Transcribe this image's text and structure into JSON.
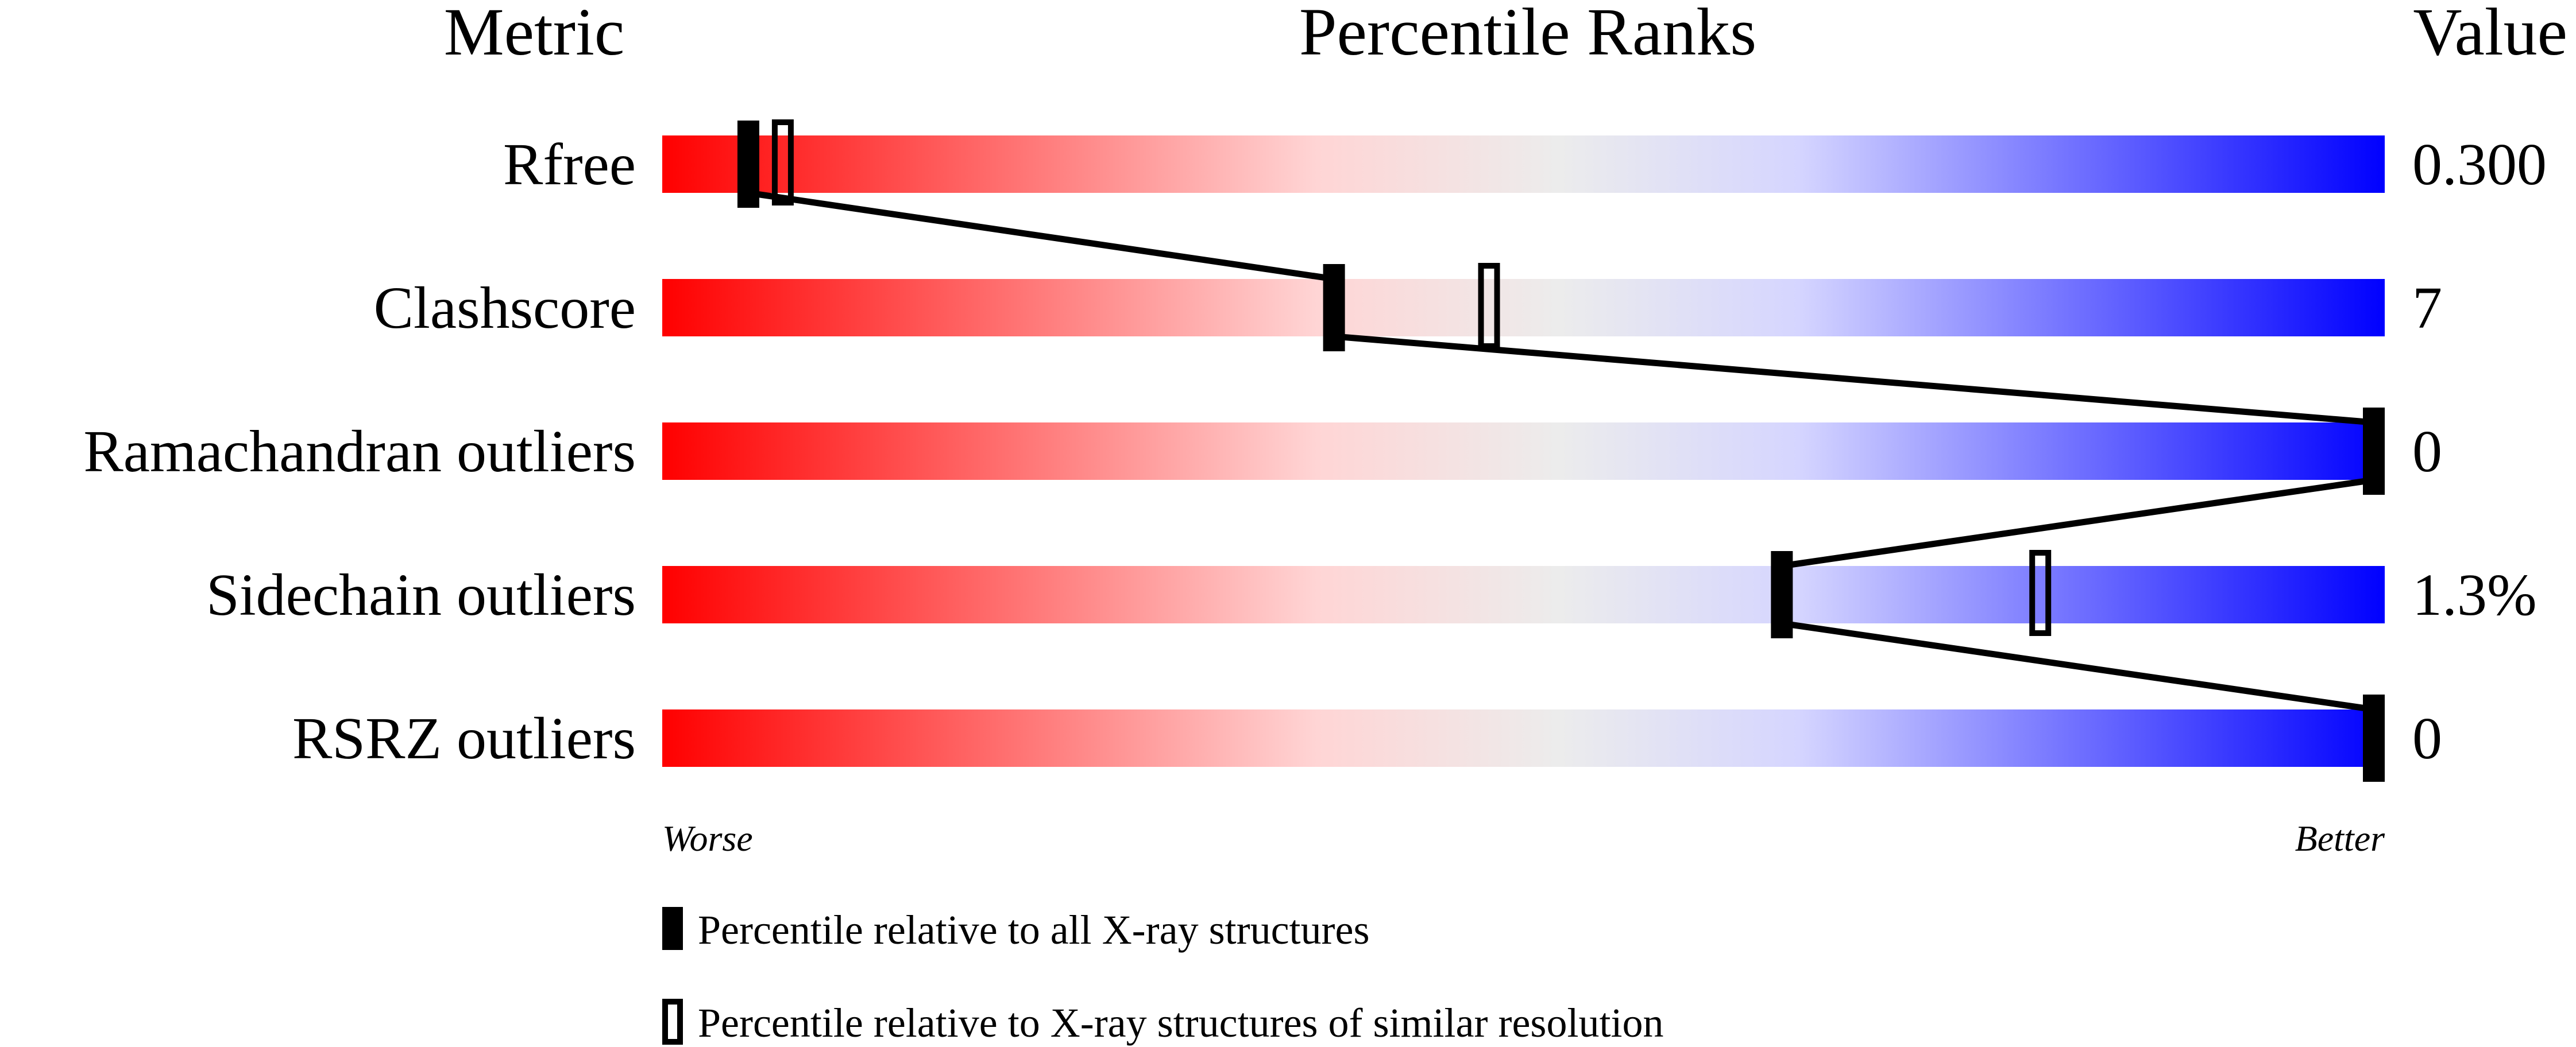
{
  "chart_data": {
    "type": "percentile-slider",
    "headers": {
      "metric": "Metric",
      "ranks": "Percentile Ranks",
      "value": "Value"
    },
    "axis": {
      "left_label": "Worse",
      "right_label": "Better",
      "range": [
        0,
        100
      ]
    },
    "gradient_colors": [
      "#ff0000",
      "#ffd5d5",
      "#ececec",
      "#d5d5ff",
      "#0000ff"
    ],
    "metrics": [
      {
        "name": "Rfree",
        "value": "0.300",
        "percentile_all": 5,
        "percentile_similar": 7
      },
      {
        "name": "Clashscore",
        "value": "7",
        "percentile_all": 39,
        "percentile_similar": 48
      },
      {
        "name": "Ramachandran outliers",
        "value": "0",
        "percentile_all": 100,
        "percentile_similar": null
      },
      {
        "name": "Sidechain outliers",
        "value": "1.3%",
        "percentile_all": 65,
        "percentile_similar": 80
      },
      {
        "name": "RSRZ outliers",
        "value": "0",
        "percentile_all": 100,
        "percentile_similar": null
      }
    ],
    "legend": [
      {
        "marker": "filled",
        "label": "Percentile relative to all X-ray structures"
      },
      {
        "marker": "open",
        "label": "Percentile relative to X-ray structures of similar resolution"
      }
    ]
  }
}
